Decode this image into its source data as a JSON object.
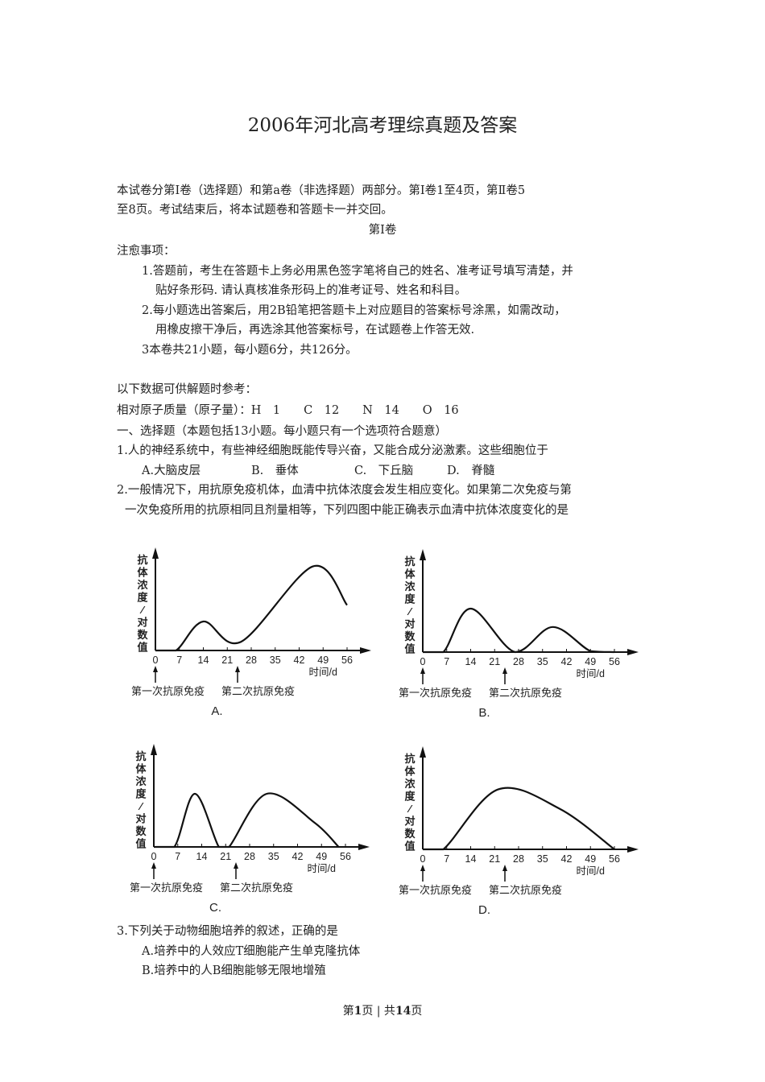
{
  "title": "2006年河北高考理综真题及答案",
  "intro": [
    "本试卷分第Ⅰ卷（选择题）和第a卷（非选择题）两部分。第Ⅰ卷1至4页，第Ⅱ卷5",
    "至8页。考试结束后，将本试题卷和答题卡一并交回。"
  ],
  "section_heading": "第Ⅰ卷",
  "notice_label": "注愈事项：",
  "notices": [
    "1.答题前，考生在答题卡上务必用黑色签字笔将自己的姓名、准考证号填写清楚，并",
    "贴好条形码. 请认真核准条形码上的准考证号、姓名和科目。",
    "2.每小题选出答案后，用2B铅笔把答题卡上对应题目的答案标号涂黑，如需改动，",
    "用橡皮擦干净后，再选涂其他答案标号，在试题卷上作答无效.",
    "3本卷共21小题，每小题6分，共126分。"
  ],
  "reference_label": "以下数据可供解题时参考：",
  "atomic_mass": "相对原子质量（原子量）：H　1　　C　12　　N　14　　O　16",
  "part_heading": "一、选择题（本题包括13小题。每小题只有一个选项符合题意）",
  "q1": {
    "stem": "1.人的神经系统中，有些神经细胞既能传导兴奋，又能合成分泌激素。这些细胞位于",
    "options": [
      "A.大脑皮层",
      "B.　垂体",
      "C.　下丘脑",
      "D.　脊髓"
    ]
  },
  "q2": {
    "stem": [
      "2.一般情况下，用抗原免疫机体，血清中抗体浓度会发生相应变化。如果第二次免疫与第",
      "一次免疫所用的抗原相同且剂量相等，下列四图中能正确表示血清中抗体浓度变化的是"
    ]
  },
  "chart_data": [
    {
      "type": "line",
      "label": "A.",
      "ylabel": "抗体浓度/对数值",
      "xlabel": "时间/d",
      "xticks": [
        0,
        7,
        14,
        21,
        28,
        35,
        42,
        49,
        56
      ],
      "annotations": [
        "第一次抗原免疫",
        "第二次抗原免疫"
      ],
      "x": [
        0,
        6,
        14,
        25,
        46,
        56
      ],
      "y": [
        0,
        0,
        3.0,
        0.9,
        8.7,
        4.7
      ]
    },
    {
      "type": "line",
      "label": "B.",
      "ylabel": "抗体浓度/对数值",
      "xlabel": "时间/d",
      "xticks": [
        0,
        7,
        14,
        21,
        28,
        35,
        42,
        49,
        56
      ],
      "annotations": [
        "第一次抗原免疫",
        "第二次抗原免疫"
      ],
      "x": [
        0,
        6,
        14,
        27,
        38,
        49,
        56
      ],
      "y": [
        0,
        0,
        4.5,
        0,
        2.6,
        0.1,
        0
      ]
    },
    {
      "type": "line",
      "label": "C.",
      "ylabel": "抗体浓度/对数值",
      "xlabel": "时间/d",
      "xticks": [
        0,
        7,
        14,
        21,
        28,
        35,
        42,
        49,
        56
      ],
      "annotations": [
        "第一次抗原免疫",
        "第二次抗原免疫"
      ],
      "x": [
        0,
        6,
        12,
        19,
        22,
        33,
        47,
        54
      ],
      "y": [
        0,
        0,
        5.5,
        0,
        0,
        5.5,
        2.5,
        0
      ]
    },
    {
      "type": "line",
      "label": "D.",
      "ylabel": "抗体浓度/对数值",
      "xlabel": "时间/d",
      "xticks": [
        0,
        7,
        14,
        21,
        28,
        35,
        42,
        49,
        56
      ],
      "annotations": [
        "第一次抗原免疫",
        "第二次抗原免疫"
      ],
      "x": [
        0,
        6,
        22,
        40,
        56
      ],
      "y": [
        0,
        0,
        6.2,
        4.2,
        0
      ]
    }
  ],
  "q3": {
    "stem": "3.下列关于动物细胞培养的叙述，正确的是",
    "options": [
      "A.培养中的人效应T细胞能产生单克隆抗体",
      "B.培养中的人B细胞能够无限地增殖"
    ]
  },
  "footer": {
    "prefix": "第",
    "page": "1",
    "mid": "页 | 共",
    "total": "14",
    "suffix": "页"
  }
}
